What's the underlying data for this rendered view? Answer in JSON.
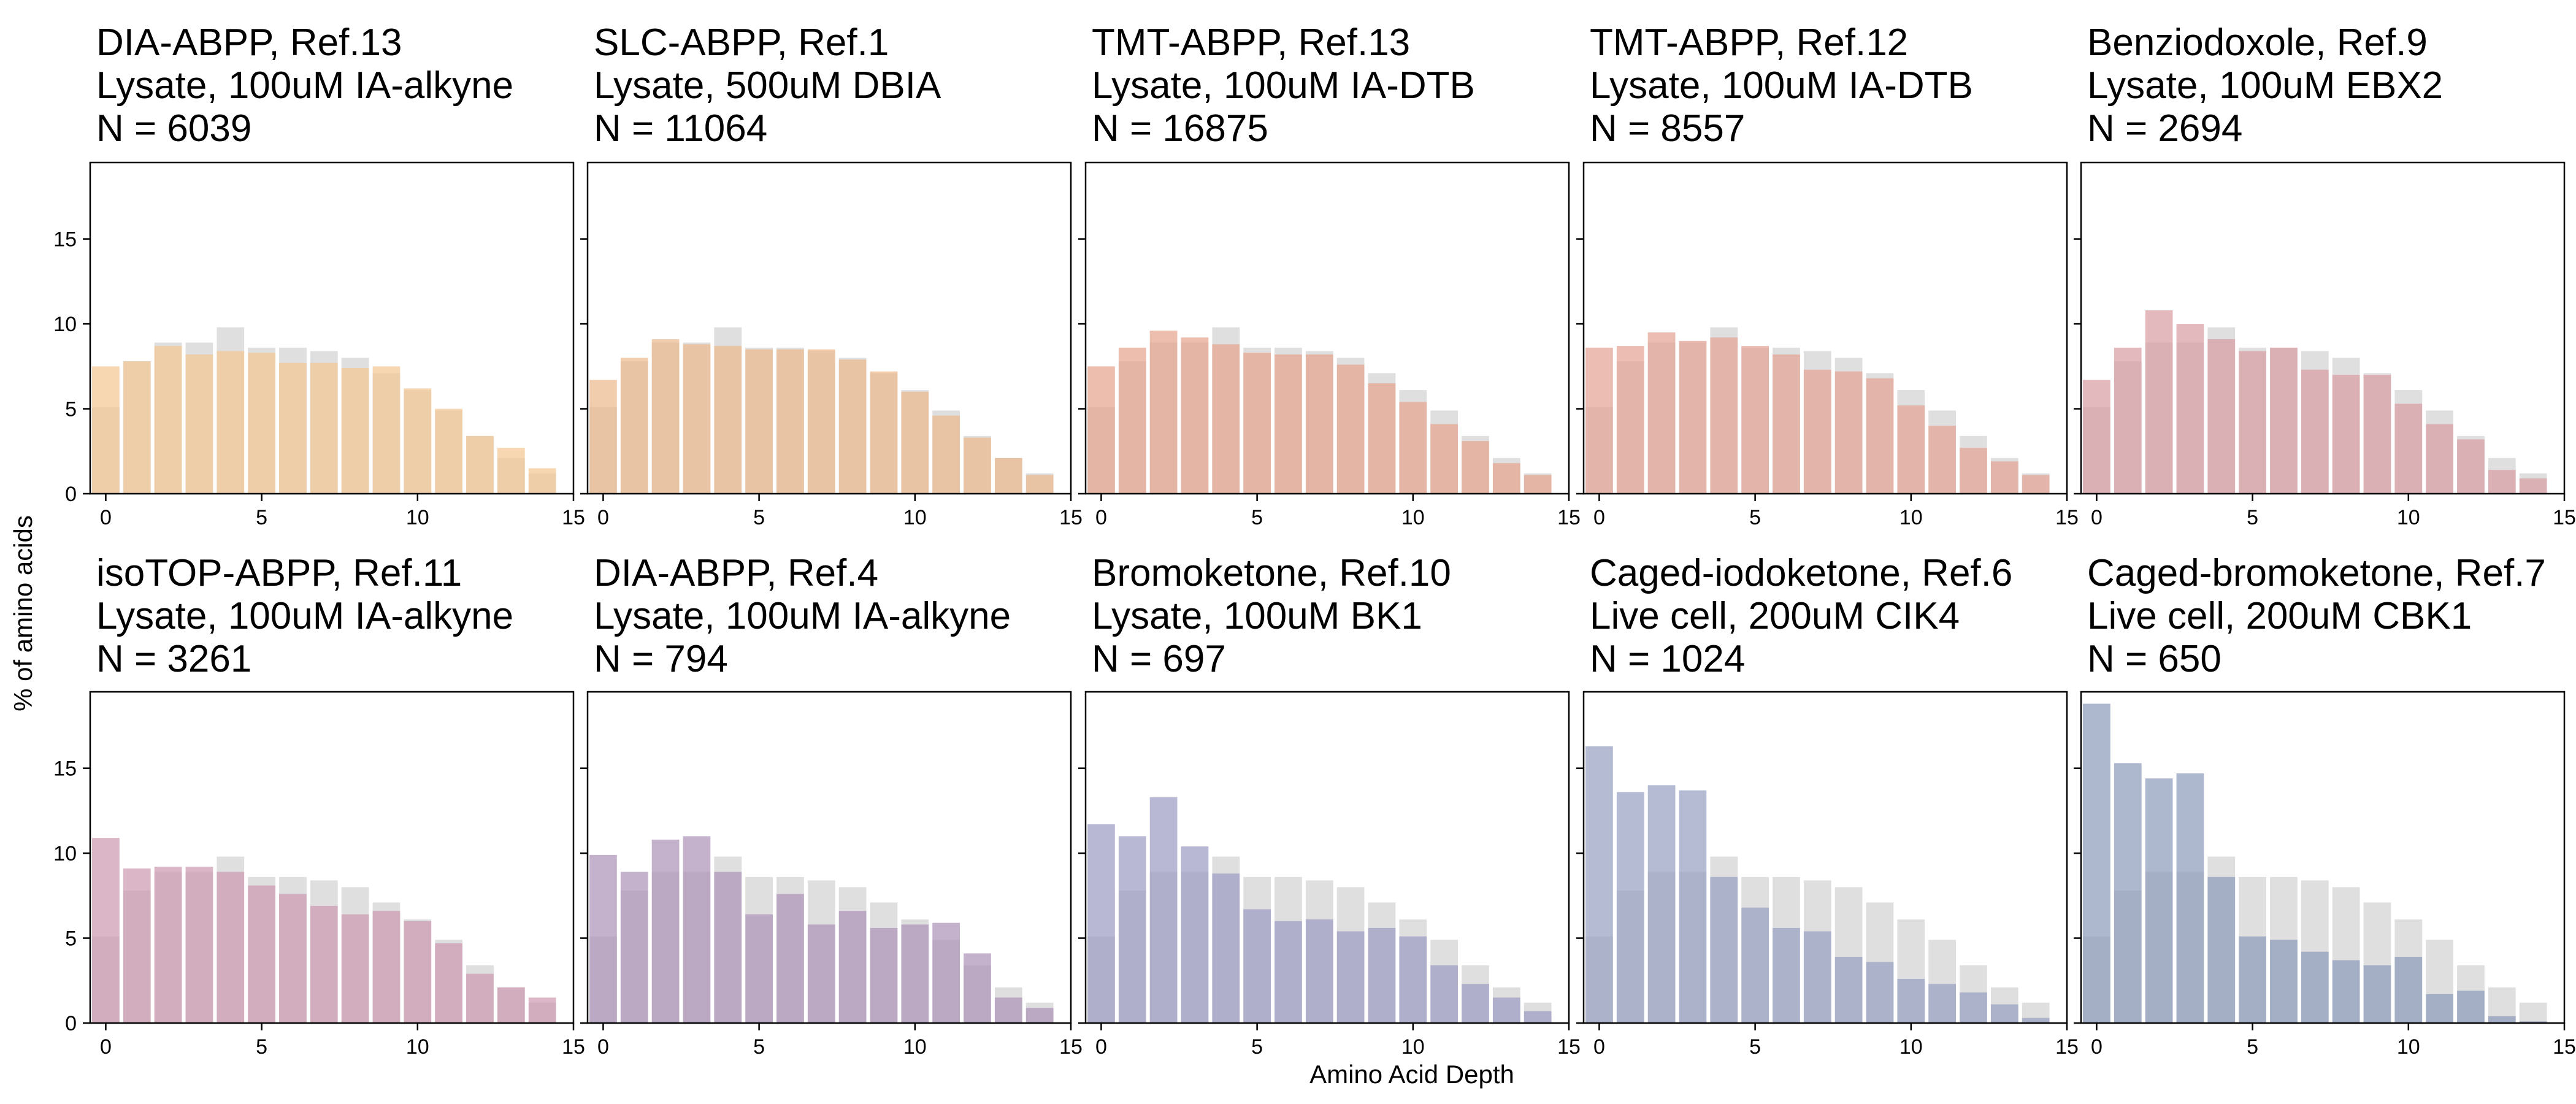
{
  "figure": {
    "ylabel": "% of amino acids",
    "xlabel": "Amino Acid Depth"
  },
  "chart_data": {
    "type": "bar",
    "x": [
      0,
      1,
      2,
      3,
      4,
      5,
      6,
      7,
      8,
      9,
      10,
      11,
      12,
      13,
      14
    ],
    "xticks": [
      0,
      5,
      10,
      15
    ],
    "yticks": [
      0,
      5,
      10,
      15
    ],
    "xlim": [
      -0.5,
      15
    ],
    "ylim": [
      0,
      19.5
    ],
    "grid": false,
    "reference_color": "#d9d9d9",
    "reference_values": [
      5.1,
      7.8,
      8.9,
      8.9,
      9.8,
      8.6,
      8.6,
      8.4,
      8.0,
      7.1,
      6.1,
      4.9,
      3.4,
      2.1,
      1.2
    ],
    "panels": [
      {
        "title": [
          "DIA-ABPP, Ref.13",
          "Lysate, 100uM IA-alkyne",
          "N = 6039"
        ],
        "color": "#f2c894",
        "values": [
          7.5,
          7.8,
          8.7,
          8.2,
          8.4,
          8.3,
          7.7,
          7.7,
          7.4,
          7.5,
          6.2,
          5.0,
          3.4,
          2.7,
          1.5
        ]
      },
      {
        "title": [
          "SLC-ABPP, Ref.1",
          "Lysate, 500uM DBIA",
          "N = 11064"
        ],
        "color": "#ebba8e",
        "values": [
          6.7,
          8.0,
          9.1,
          8.8,
          8.7,
          8.5,
          8.5,
          8.5,
          7.9,
          7.2,
          6.0,
          4.6,
          3.3,
          2.1,
          1.1
        ]
      },
      {
        "title": [
          "TMT-ABPP, Ref.13",
          "Lysate, 100uM IA-DTB",
          "N = 16875"
        ],
        "color": "#e6a58e",
        "values": [
          7.5,
          8.6,
          9.6,
          9.2,
          8.8,
          8.3,
          8.2,
          8.2,
          7.6,
          6.5,
          5.4,
          4.1,
          3.1,
          1.8,
          1.1
        ]
      },
      {
        "title": [
          "TMT-ABPP, Ref.12",
          "Lysate, 100uM IA-DTB",
          "N = 8557"
        ],
        "color": "#e3a396",
        "values": [
          8.6,
          8.7,
          9.5,
          9.0,
          9.2,
          8.7,
          8.2,
          7.3,
          7.2,
          6.8,
          5.2,
          4.0,
          2.7,
          1.9,
          1.1
        ]
      },
      {
        "title": [
          "Benziodoxole, Ref.9",
          "Lysate, 100uM EBX2",
          "N = 2694"
        ],
        "color": "#d99ea5",
        "values": [
          6.7,
          8.6,
          10.8,
          10.0,
          9.1,
          8.4,
          8.6,
          7.3,
          7.0,
          7.0,
          5.3,
          4.1,
          3.2,
          1.4,
          0.9
        ]
      },
      {
        "title": [
          "isoTOP-ABPP, Ref.11",
          "Lysate, 100uM IA-alkyne",
          "N = 3261"
        ],
        "color": "#cc9ab0",
        "values": [
          10.9,
          9.1,
          9.2,
          9.2,
          8.9,
          8.1,
          7.6,
          6.9,
          6.4,
          6.6,
          6.0,
          4.7,
          2.9,
          2.1,
          1.5
        ]
      },
      {
        "title": [
          "DIA-ABPP, Ref.4",
          "Lysate, 100uM IA-alkyne",
          "N = 794"
        ],
        "color": "#ad93b8",
        "values": [
          9.9,
          8.9,
          10.8,
          11.0,
          8.9,
          6.4,
          7.6,
          5.8,
          6.6,
          5.6,
          5.8,
          5.9,
          4.1,
          1.5,
          0.9
        ]
      },
      {
        "title": [
          "Bromoketone, Ref.10",
          "Lysate, 100uM BK1",
          "N = 697"
        ],
        "color": "#9e9cc4",
        "values": [
          11.7,
          11.0,
          13.3,
          10.4,
          8.8,
          6.7,
          6.0,
          6.1,
          5.4,
          5.6,
          5.1,
          3.4,
          2.3,
          1.5,
          0.7
        ]
      },
      {
        "title": [
          "Caged-iodoketone, Ref.6",
          "Live cell, 200uM CIK4",
          "N = 1024"
        ],
        "color": "#97a1c0",
        "values": [
          16.3,
          13.6,
          14.0,
          13.7,
          8.6,
          6.8,
          5.6,
          5.4,
          3.9,
          3.6,
          2.6,
          2.3,
          1.8,
          1.1,
          0.3
        ]
      },
      {
        "title": [
          "Caged-bromoketone, Ref.7",
          "Live cell, 200uM CBK1",
          "N = 650"
        ],
        "color": "#8e9dbb",
        "values": [
          18.8,
          15.3,
          14.4,
          14.7,
          8.6,
          5.1,
          4.9,
          4.2,
          3.7,
          3.4,
          3.9,
          1.7,
          1.9,
          0.4,
          0.1
        ]
      }
    ]
  }
}
